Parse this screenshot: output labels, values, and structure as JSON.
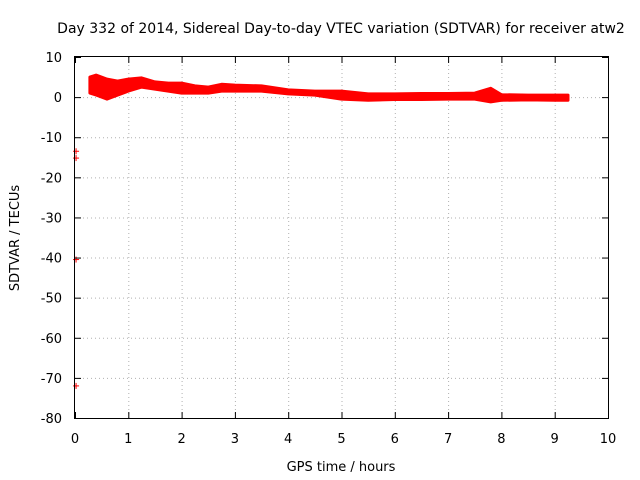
{
  "chart_data": {
    "type": "scatter",
    "title": "Day 332 of 2014, Sidereal Day-to-day VTEC variation (SDTVAR) for receiver atw2",
    "xlabel": "GPS time / hours",
    "ylabel": "SDTVAR / TECUs",
    "xlim": [
      0,
      10
    ],
    "ylim": [
      -80,
      10
    ],
    "xticks": [
      0,
      1,
      2,
      3,
      4,
      5,
      6,
      7,
      8,
      9,
      10
    ],
    "yticks": [
      -80,
      -70,
      -60,
      -50,
      -40,
      -30,
      -20,
      -10,
      0,
      10
    ],
    "grid": true,
    "series": [
      {
        "name": "SDTVAR",
        "color": "#ff0000",
        "marker": "plus",
        "band": {
          "x": [
            0.28,
            0.4,
            0.5,
            0.6,
            0.8,
            1.0,
            1.25,
            1.5,
            1.75,
            2.0,
            2.25,
            2.5,
            2.75,
            3.0,
            3.5,
            4.0,
            4.5,
            5.0,
            5.5,
            6.0,
            6.5,
            7.0,
            7.5,
            7.8,
            8.0,
            8.5,
            9.0,
            9.25
          ],
          "lower": [
            1.0,
            0.5,
            0.0,
            -0.5,
            0.5,
            1.5,
            2.5,
            2.0,
            1.5,
            1.0,
            1.0,
            1.0,
            1.5,
            1.5,
            1.5,
            0.8,
            0.5,
            -0.5,
            -0.8,
            -0.6,
            -0.6,
            -0.5,
            -0.5,
            -1.2,
            -0.8,
            -0.7,
            -0.8,
            -0.8
          ],
          "upper": [
            5.0,
            5.5,
            5.0,
            4.5,
            4.0,
            4.5,
            4.8,
            3.8,
            3.5,
            3.5,
            2.8,
            2.5,
            3.2,
            3.0,
            2.8,
            1.8,
            1.5,
            1.5,
            0.8,
            0.8,
            0.9,
            0.9,
            1.0,
            2.2,
            0.6,
            0.5,
            0.5,
            0.5
          ]
        },
        "outliers": [
          {
            "x": 0.02,
            "y": -13.5
          },
          {
            "x": 0.02,
            "y": -15.2
          },
          {
            "x": 0.02,
            "y": -40.5
          },
          {
            "x": 0.02,
            "y": -72.0
          }
        ]
      }
    ]
  }
}
